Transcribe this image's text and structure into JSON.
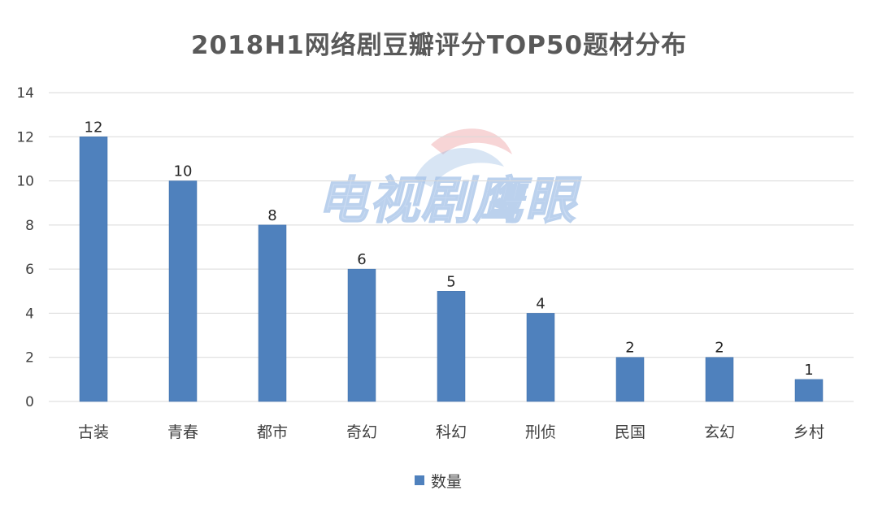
{
  "colors": {
    "bar": "#4F81BD",
    "bar_edge": "#3F6FA8",
    "grid": "#D9D9D9",
    "axis_text": "#404040",
    "title": "#595959"
  },
  "watermark": {
    "text": "电视剧鹰眼"
  },
  "chart_data": {
    "type": "bar",
    "title": "2018H1网络剧豆瓣评分TOP50题材分布",
    "xlabel": "",
    "ylabel": "",
    "categories": [
      "古装",
      "青春",
      "都市",
      "奇幻",
      "科幻",
      "刑侦",
      "民国",
      "玄幻",
      "乡村"
    ],
    "series": [
      {
        "name": "数量",
        "values": [
          12,
          10,
          8,
          6,
          5,
          4,
          2,
          2,
          1
        ]
      }
    ],
    "ylim": [
      0,
      14
    ],
    "yticks": [
      0,
      2,
      4,
      6,
      8,
      10,
      12,
      14
    ],
    "grid": true,
    "legend_position": "bottom",
    "data_labels": true
  }
}
